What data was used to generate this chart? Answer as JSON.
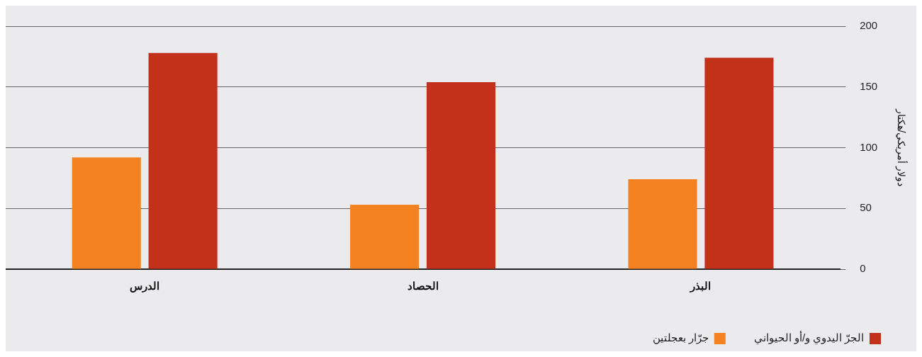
{
  "chart_data": {
    "type": "bar",
    "ylabel": "دولار أمريكي/هكتار",
    "categories": [
      "الدرس",
      "الحصاد",
      "البذر"
    ],
    "series": [
      {
        "name": "جرّار بعجلتين",
        "color": "#f58220",
        "values": [
          92,
          53,
          74
        ]
      },
      {
        "name": "الجرّ اليدوي و/أو الحيواني",
        "color": "#c4311a",
        "values": [
          178,
          154,
          174
        ]
      }
    ],
    "ylim": [
      0,
      200
    ],
    "yticks": [
      0,
      50,
      100,
      150,
      200
    ],
    "grid": "y",
    "legend": "bottom right"
  }
}
